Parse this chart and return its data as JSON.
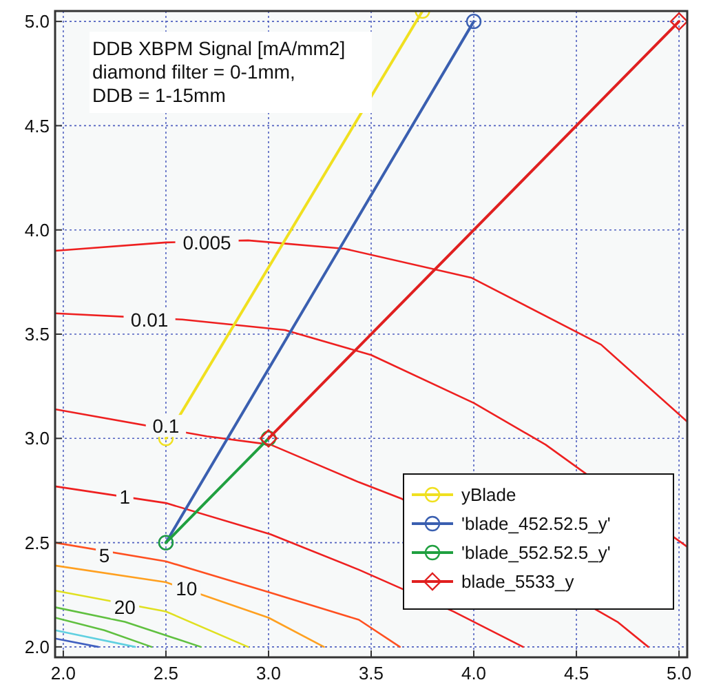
{
  "chart_data": {
    "type": "line",
    "annotations": [
      "DDB XBPM Signal [mA/mm2]",
      "diamond filter = 0-1mm,",
      "DDB = 1-15mm",
      {
        "text": "0.005",
        "x": 2.7,
        "y": 3.94
      },
      {
        "text": "0.01",
        "x": 2.42,
        "y": 3.57
      },
      {
        "text": "0.1",
        "x": 2.5,
        "y": 3.06
      },
      {
        "text": "1",
        "x": 2.3,
        "y": 2.72
      },
      {
        "text": "5",
        "x": 2.2,
        "y": 2.44
      },
      {
        "text": "10",
        "x": 2.6,
        "y": 2.28
      },
      {
        "text": "20",
        "x": 2.3,
        "y": 2.19
      }
    ],
    "xlim": [
      1.96,
      5.04
    ],
    "ylim": [
      1.95,
      5.05
    ],
    "xticks": [
      {
        "value": 2,
        "label": "2.0"
      },
      2.5,
      {
        "value": 3,
        "label": "3.0"
      },
      3.5,
      {
        "value": 4,
        "label": "4.0"
      },
      4.5,
      {
        "value": 5,
        "label": "5.0"
      }
    ],
    "yticks": [
      {
        "value": 2,
        "label": "2.0"
      },
      2.5,
      {
        "value": 3,
        "label": "3.0"
      },
      3.5,
      {
        "value": 4,
        "label": "4.0"
      },
      4.5,
      {
        "value": 5,
        "label": "5.0"
      }
    ],
    "grid": true,
    "legend": "bottom right",
    "line_style": "solid",
    "series": [
      {
        "color": "#ee2020",
        "marker": "none",
        "x": [
          1.96,
          2.5,
          2.9,
          3.37,
          3.99,
          4.62,
          5.04
        ],
        "values": [
          3.9,
          3.94,
          3.95,
          3.91,
          3.77,
          3.45,
          3.08
        ]
      },
      {
        "color": "#ee2020",
        "marker": "none",
        "x": [
          1.96,
          2.58,
          3.08,
          3.5,
          4.0,
          4.35,
          5.04
        ],
        "values": [
          3.6,
          3.57,
          3.52,
          3.4,
          3.17,
          2.97,
          2.48
        ]
      },
      {
        "color": "#ee2020",
        "marker": "none",
        "x": [
          1.96,
          2.7,
          3.01,
          3.44,
          3.65,
          4.7,
          4.85
        ],
        "values": [
          3.14,
          3.01,
          2.97,
          2.79,
          2.71,
          2.12,
          2.0
        ]
      },
      {
        "color": "#ee2020",
        "marker": "none",
        "x": [
          1.96,
          2.5,
          3.01,
          3.44,
          3.9,
          4.24
        ],
        "values": [
          2.77,
          2.69,
          2.54,
          2.37,
          2.17,
          2.0
        ]
      },
      {
        "color": "#ff5020",
        "marker": "none",
        "x": [
          1.96,
          2.5,
          3.01,
          3.44,
          3.64
        ],
        "values": [
          2.5,
          2.41,
          2.26,
          2.13,
          2.0
        ]
      },
      {
        "color": "#ffa020",
        "marker": "none",
        "x": [
          1.96,
          2.5,
          3.0,
          3.27
        ],
        "values": [
          2.39,
          2.31,
          2.14,
          2.0
        ]
      },
      {
        "color": "#e0e020",
        "marker": "none",
        "x": [
          1.96,
          2.5,
          2.9
        ],
        "values": [
          2.27,
          2.17,
          2.0
        ]
      },
      {
        "color": "#60c040",
        "marker": "none",
        "x": [
          1.96,
          2.3,
          2.67
        ],
        "values": [
          2.19,
          2.12,
          2.0
        ]
      },
      {
        "color": "#60c040",
        "marker": "none",
        "x": [
          1.96,
          2.2,
          2.43
        ],
        "values": [
          2.14,
          2.08,
          2.0
        ]
      },
      {
        "color": "#60d0e0",
        "marker": "none",
        "x": [
          1.96,
          2.35
        ],
        "values": [
          2.08,
          2.0
        ]
      },
      {
        "color": "#4060c0",
        "marker": "none",
        "x": [
          1.96,
          2.17
        ],
        "values": [
          2.04,
          2.0
        ]
      },
      {
        "name": "yBlade",
        "color": "#f0e020",
        "marker": "circle",
        "x": [
          2.5,
          3.75
        ],
        "values": [
          3.0,
          5.05
        ]
      },
      {
        "name": "'blade_452.52.5_y'",
        "color": "#3a5fb0",
        "marker": "circle",
        "x": [
          2.5,
          4.0
        ],
        "values": [
          2.5,
          5.0
        ]
      },
      {
        "name": "'blade_552.52.5_y'",
        "color": "#20a040",
        "marker": "circle",
        "x": [
          2.5,
          3.0
        ],
        "values": [
          2.5,
          3.0
        ]
      },
      {
        "name": "blade_5533_y",
        "color": "#e02020",
        "marker": "diamond",
        "x": [
          3.0,
          5.0
        ],
        "values": [
          3.0,
          5.0
        ]
      }
    ]
  }
}
